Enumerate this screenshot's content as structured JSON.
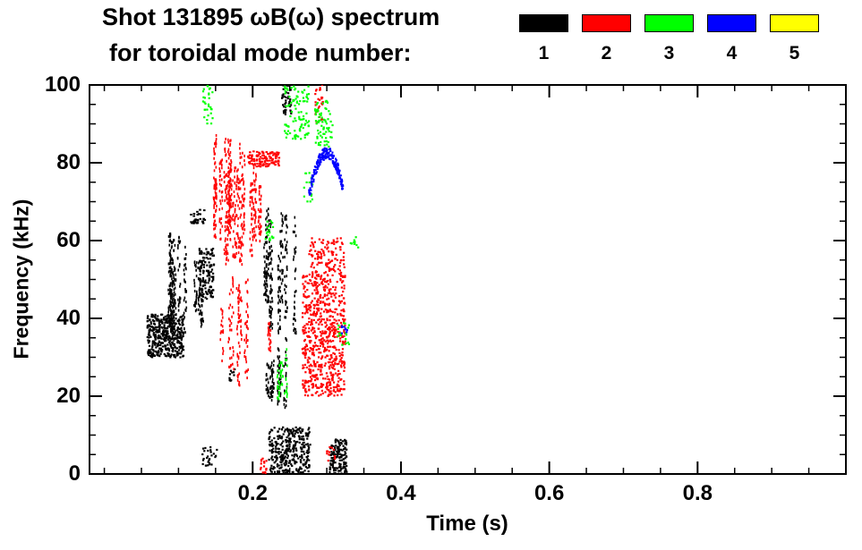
{
  "title_line1": "Shot 131895 ωB(ω) spectrum",
  "title_line2": "for toroidal mode number:",
  "legend": [
    {
      "label": "1",
      "color": "#000000"
    },
    {
      "label": "2",
      "color": "#ff0000"
    },
    {
      "label": "3",
      "color": "#00ff00"
    },
    {
      "label": "4",
      "color": "#0000ff"
    },
    {
      "label": "5",
      "color": "#ffff00"
    }
  ],
  "chart_data": {
    "type": "scatter",
    "title": "Shot 131895 ωB(ω) spectrum for toroidal mode number: 1 2 3 4 5",
    "xlabel": "Time (s)",
    "ylabel": "Frequency (kHz)",
    "xlim": [
      -0.02,
      1.0
    ],
    "ylim": [
      0,
      100
    ],
    "xticks": [
      0.2,
      0.4,
      0.6,
      0.8
    ],
    "xtick_labels": [
      "0.2",
      "0.4",
      "0.6",
      "0.8"
    ],
    "yticks": [
      0,
      20,
      40,
      60,
      80,
      100
    ],
    "ytick_labels": [
      "0",
      "20",
      "40",
      "60",
      "80",
      "100"
    ],
    "x_minor_step": 0.05,
    "y_minor_step": 5,
    "grid": false,
    "legend_position": "top",
    "series": [
      {
        "name": "n=1",
        "color": "#000000",
        "clusters": [
          {
            "type": "blob",
            "t": [
              0.058,
              0.107
            ],
            "f": [
              30,
              41
            ],
            "n": 420
          },
          {
            "type": "vstreaks",
            "t": [
              0.078,
              0.134
            ],
            "f": [
              30,
              63
            ],
            "n": 300,
            "streaks": 11
          },
          {
            "type": "blob",
            "t": [
              0.128,
              0.148
            ],
            "f": [
              45,
              58
            ],
            "n": 130
          },
          {
            "type": "hband",
            "t": [
              0.116,
              0.136
            ],
            "f": [
              64,
              68
            ],
            "n": 30
          },
          {
            "type": "vstreaks",
            "t": [
              0.215,
              0.258
            ],
            "f": [
              35,
              70
            ],
            "n": 280,
            "streaks": 8
          },
          {
            "type": "vstreaks",
            "t": [
              0.212,
              0.252
            ],
            "f": [
              12,
              35
            ],
            "n": 130,
            "streaks": 6
          },
          {
            "type": "blob",
            "t": [
              0.222,
              0.278
            ],
            "f": [
              0,
              12
            ],
            "n": 340
          },
          {
            "type": "blob",
            "t": [
              0.303,
              0.327
            ],
            "f": [
              0,
              9
            ],
            "n": 150
          },
          {
            "type": "blob",
            "t": [
              0.238,
              0.252
            ],
            "f": [
              92,
              100
            ],
            "n": 40
          },
          {
            "type": "blob",
            "t": [
              0.132,
              0.152
            ],
            "f": [
              2,
              7
            ],
            "n": 28
          },
          {
            "type": "blob",
            "t": [
              0.168,
              0.178
            ],
            "f": [
              23,
              27
            ],
            "n": 12
          }
        ]
      },
      {
        "name": "n=2",
        "color": "#ff0000",
        "clusters": [
          {
            "type": "vstreaks",
            "t": [
              0.14,
              0.214
            ],
            "f": [
              52,
              88
            ],
            "n": 540,
            "streaks": 15
          },
          {
            "type": "hband",
            "t": [
              0.194,
              0.236
            ],
            "f": [
              79,
              83
            ],
            "n": 110
          },
          {
            "type": "vstreaks",
            "t": [
              0.155,
              0.196
            ],
            "f": [
              22,
              52
            ],
            "n": 140,
            "streaks": 8
          },
          {
            "type": "blob",
            "t": [
              0.267,
              0.325
            ],
            "f": [
              20,
              51
            ],
            "n": 680
          },
          {
            "type": "blob",
            "t": [
              0.276,
              0.324
            ],
            "f": [
              51,
              61
            ],
            "n": 130
          },
          {
            "type": "blob",
            "t": [
              0.284,
              0.295
            ],
            "f": [
              90,
              100
            ],
            "n": 30
          },
          {
            "type": "blob",
            "t": [
              0.21,
              0.219
            ],
            "f": [
              0,
              4
            ],
            "n": 16
          },
          {
            "type": "blob",
            "t": [
              0.3,
              0.312
            ],
            "f": [
              3,
              7
            ],
            "n": 12
          },
          {
            "type": "vstreaks",
            "t": [
              0.222,
              0.232
            ],
            "f": [
              30,
              42
            ],
            "n": 22,
            "streaks": 2
          }
        ]
      },
      {
        "name": "n=3",
        "color": "#00ff00",
        "clusters": [
          {
            "type": "blob",
            "t": [
              0.133,
              0.146
            ],
            "f": [
              90,
              100
            ],
            "n": 30
          },
          {
            "type": "blob",
            "t": [
              0.243,
              0.276
            ],
            "f": [
              86,
              100
            ],
            "n": 95
          },
          {
            "type": "blob",
            "t": [
              0.284,
              0.308
            ],
            "f": [
              84,
              96
            ],
            "n": 70
          },
          {
            "type": "blob",
            "t": [
              0.217,
              0.229
            ],
            "f": [
              60,
              65
            ],
            "n": 18
          },
          {
            "type": "vstreaks",
            "t": [
              0.232,
              0.246
            ],
            "f": [
              16,
              34
            ],
            "n": 48,
            "streaks": 3
          },
          {
            "type": "blob",
            "t": [
              0.315,
              0.33
            ],
            "f": [
              33,
              39
            ],
            "n": 18
          },
          {
            "type": "blob",
            "t": [
              0.332,
              0.343
            ],
            "f": [
              58,
              61
            ],
            "n": 10
          },
          {
            "type": "blob",
            "t": [
              0.268,
              0.282
            ],
            "f": [
              70,
              78
            ],
            "n": 14
          }
        ]
      },
      {
        "name": "n=4",
        "color": "#0000ff",
        "clusters": [
          {
            "type": "arc",
            "t": [
              0.276,
              0.322
            ],
            "tpeak": 0.3,
            "peak": 82.5,
            "curv": 18900,
            "thick": 3,
            "n": 210
          },
          {
            "type": "blob",
            "t": [
              0.32,
              0.328
            ],
            "f": [
              36,
              39
            ],
            "n": 8
          }
        ]
      },
      {
        "name": "n=5",
        "color": "#ffff00",
        "clusters": []
      }
    ]
  }
}
